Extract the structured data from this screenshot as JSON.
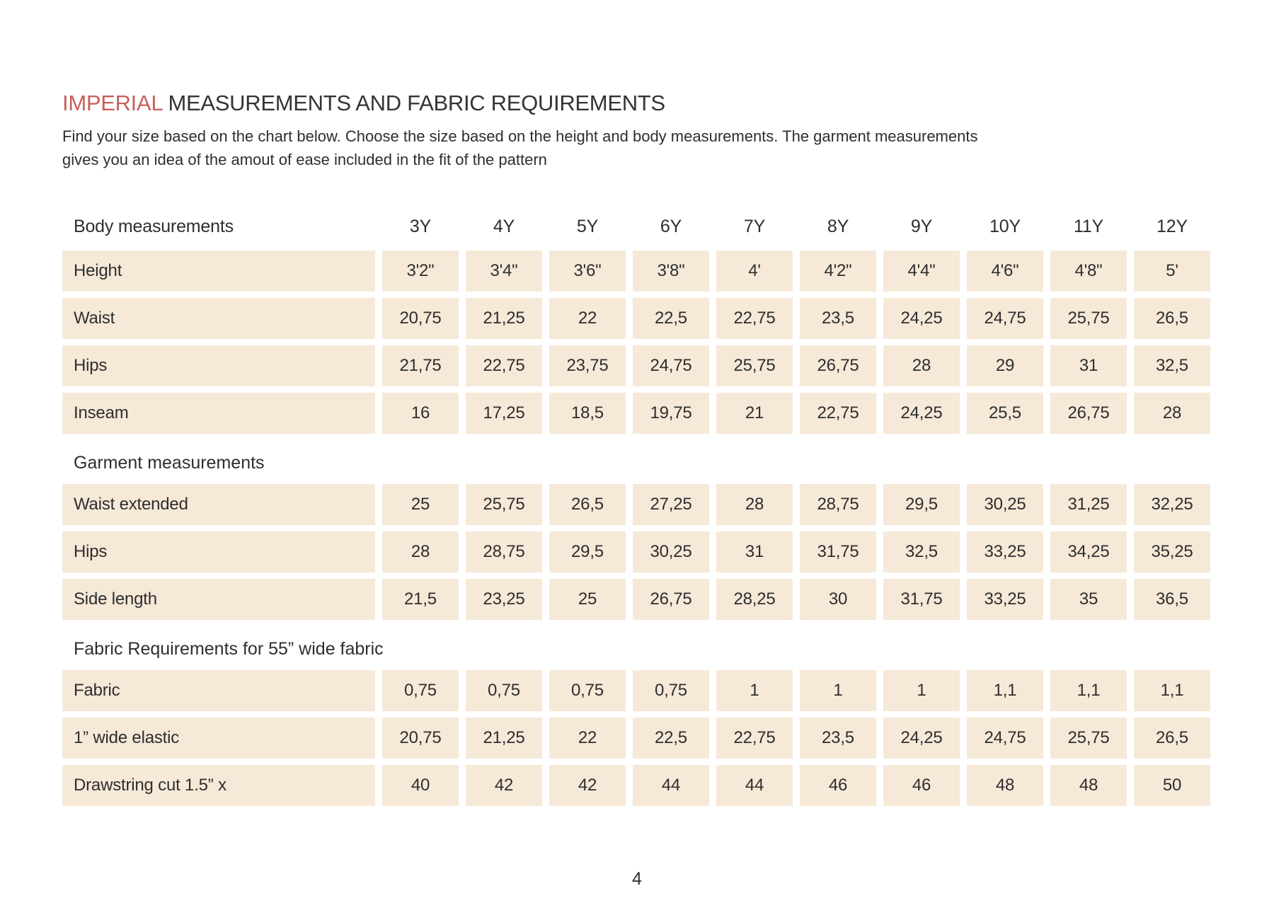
{
  "header": {
    "title_accent": "IMPERIAL",
    "title_rest": "MEASUREMENTS AND FABRIC REQUIREMENTS",
    "intro_lines": [
      "Find your size based on the chart below. Choose the size based on the height and body measurements. The garment measurements",
      "gives you an idea of the amout of ease included in the fit of the pattern"
    ]
  },
  "colors": {
    "accent": "#c9605c",
    "cell_background": "#f6e9d8",
    "text": "#2e2e2e"
  },
  "table": {
    "size_columns": [
      "3Y",
      "4Y",
      "5Y",
      "6Y",
      "7Y",
      "8Y",
      "9Y",
      "10Y",
      "11Y",
      "12Y"
    ],
    "sections": [
      {
        "heading": "Body measurements",
        "rows": [
          {
            "label": "Height",
            "values": [
              "3'2\"",
              "3'4\"",
              "3'6\"",
              "3'8\"",
              "4'",
              "4'2\"",
              "4'4\"",
              "4'6\"",
              "4'8\"",
              "5'"
            ]
          },
          {
            "label": "Waist",
            "values": [
              "20,75",
              "21,25",
              "22",
              "22,5",
              "22,75",
              "23,5",
              "24,25",
              "24,75",
              "25,75",
              "26,5"
            ]
          },
          {
            "label": "Hips",
            "values": [
              "21,75",
              "22,75",
              "23,75",
              "24,75",
              "25,75",
              "26,75",
              "28",
              "29",
              "31",
              "32,5"
            ]
          },
          {
            "label": "Inseam",
            "values": [
              "16",
              "17,25",
              "18,5",
              "19,75",
              "21",
              "22,75",
              "24,25",
              "25,5",
              "26,75",
              "28"
            ]
          }
        ]
      },
      {
        "heading": "Garment measurements",
        "rows": [
          {
            "label": "Waist extended",
            "values": [
              "25",
              "25,75",
              "26,5",
              "27,25",
              "28",
              "28,75",
              "29,5",
              "30,25",
              "31,25",
              "32,25"
            ]
          },
          {
            "label": "Hips",
            "values": [
              "28",
              "28,75",
              "29,5",
              "30,25",
              "31",
              "31,75",
              "32,5",
              "33,25",
              "34,25",
              "35,25"
            ]
          },
          {
            "label": "Side length",
            "values": [
              "21,5",
              "23,25",
              "25",
              "26,75",
              "28,25",
              "30",
              "31,75",
              "33,25",
              "35",
              "36,5"
            ]
          }
        ]
      },
      {
        "heading": "Fabric Requirements for  55” wide fabric",
        "rows": [
          {
            "label": "Fabric",
            "values": [
              "0,75",
              "0,75",
              "0,75",
              "0,75",
              "1",
              "1",
              "1",
              "1,1",
              "1,1",
              "1,1"
            ]
          },
          {
            "label": "1” wide elastic",
            "values": [
              "20,75",
              "21,25",
              "22",
              "22,5",
              "22,75",
              "23,5",
              "24,25",
              "24,75",
              "25,75",
              "26,5"
            ]
          },
          {
            "label": "Drawstring cut 1.5” x",
            "values": [
              "40",
              "42",
              "42",
              "44",
              "44",
              "46",
              "46",
              "48",
              "48",
              "50"
            ]
          }
        ]
      }
    ]
  },
  "footer": {
    "page_number": "4"
  }
}
